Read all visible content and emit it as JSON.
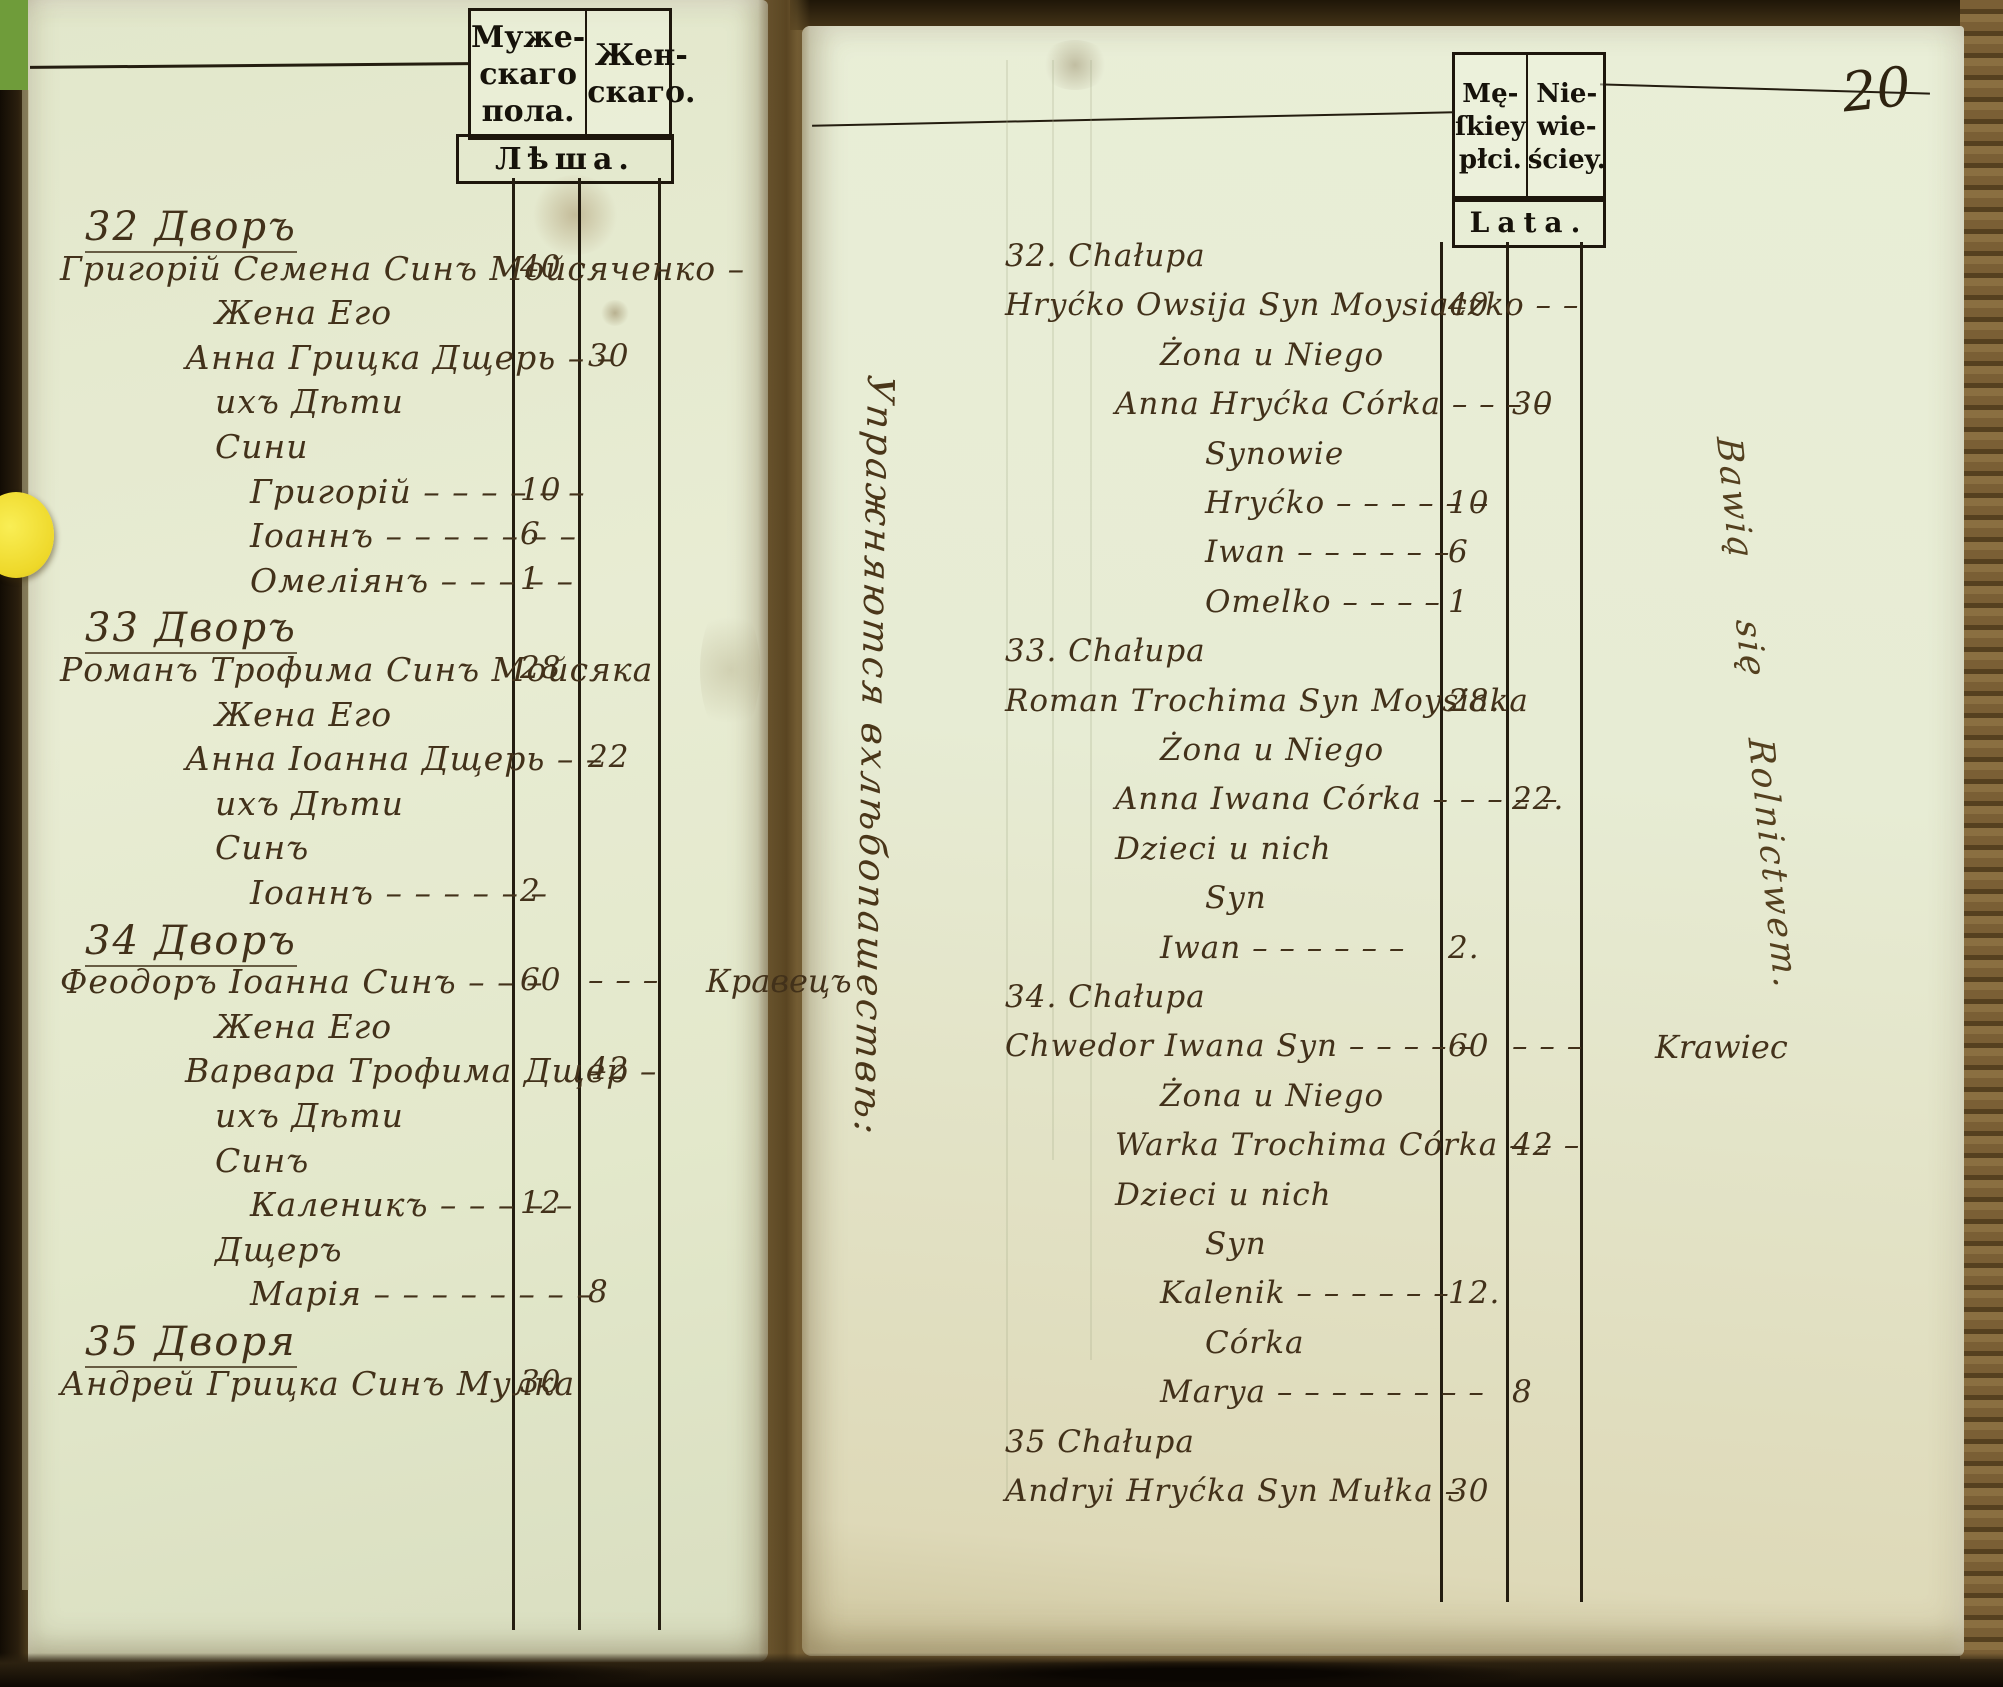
{
  "page_number": "20",
  "colors": {
    "paper_left": "#e5eace",
    "paper_right": "#e8edd5",
    "ink_hand": "#42311a",
    "ink_print": "#16120a",
    "sticker_yellow": "#eed829"
  },
  "left_page": {
    "header": {
      "col1": [
        "Муже-",
        "скаго",
        "пола."
      ],
      "col2": [
        "Жен-",
        "скаго."
      ],
      "years": "Лѣша."
    },
    "rows": [
      {
        "t": "32 Дворъ",
        "lvl": 1,
        "u": 1
      },
      {
        "t": "Григорій Семена Синъ Мойсяченко –",
        "lvl": 0,
        "m": "40"
      },
      {
        "t": "Жена Его",
        "lvl": 3
      },
      {
        "t": "Анна Грицка Дщерь – –",
        "lvl": 2,
        "f": "30"
      },
      {
        "t": "ихъ Дѣти",
        "lvl": 3
      },
      {
        "t": "Сини",
        "lvl": 3
      },
      {
        "t": "Григорій – – – – – –",
        "lvl": 4,
        "m": "10"
      },
      {
        "t": "Іоаннъ – – – – – – –",
        "lvl": 4,
        "m": "6"
      },
      {
        "t": "Омеліянъ – – – – –",
        "lvl": 4,
        "m": "1"
      },
      {
        "t": "33 Дворъ",
        "lvl": 1,
        "u": 1
      },
      {
        "t": "Романъ Трофима Синъ Мойсяка",
        "lvl": 0,
        "m": "28"
      },
      {
        "t": "Жена Его",
        "lvl": 3
      },
      {
        "t": "Анна Іоанна Дщерь – –",
        "lvl": 2,
        "f": "22"
      },
      {
        "t": "ихъ Дѣти",
        "lvl": 3
      },
      {
        "t": "Синъ",
        "lvl": 3
      },
      {
        "t": "Іоаннъ – – – – – –",
        "lvl": 4,
        "m": "2"
      },
      {
        "t": "34 Дворъ",
        "lvl": 1,
        "u": 1
      },
      {
        "t": "Феодоръ Іоанна Синъ – – –",
        "lvl": 0,
        "m": "60",
        "f": "– – –",
        "note": "Кравецъ"
      },
      {
        "t": "Жена Его",
        "lvl": 3
      },
      {
        "t": "Варвара Трофима Дщер –",
        "lvl": 2,
        "f": "42"
      },
      {
        "t": "ихъ Дѣти",
        "lvl": 3
      },
      {
        "t": "Синъ",
        "lvl": 3
      },
      {
        "t": "Каленикъ – – – – –",
        "lvl": 4,
        "m": "12"
      },
      {
        "t": "Дщеръ",
        "lvl": 3
      },
      {
        "t": "Марія – – – – – – – –",
        "lvl": 4,
        "f": "8"
      },
      {
        "t": "35 Дворя",
        "lvl": 1,
        "u": 1
      },
      {
        "t": "Андрей Грицка Синъ Мулка",
        "lvl": 0,
        "m": "30"
      }
    ]
  },
  "right_page": {
    "header": {
      "col1": [
        "Mę-",
        "ſkiey",
        "płci."
      ],
      "col2": [
        "Nie-",
        "wie-",
        "ściey."
      ],
      "years": "Lata."
    },
    "rows": [
      {
        "t": "32. Chałupa",
        "lvl": 1
      },
      {
        "t": "Hryćko Owsija Syn Moysiaczko – –",
        "lvl": 0,
        "m": "40"
      },
      {
        "t": "Żona u Niego",
        "lvl": 3
      },
      {
        "t": "Anna Hryćka Córka – – – –",
        "lvl": 2,
        "f": "30"
      },
      {
        "t": "Synowie",
        "lvl": 4
      },
      {
        "t": "Hryćko – – – – – –",
        "lvl": 4,
        "m": "10"
      },
      {
        "t": "Iwan – – – – – –",
        "lvl": 4,
        "m": "6"
      },
      {
        "t": "Omelko – – – –",
        "lvl": 4,
        "m": "1"
      },
      {
        "t": "33. Chałupa",
        "lvl": 1
      },
      {
        "t": "Roman Trochima Syn Moysiaka",
        "lvl": 0,
        "m": "28."
      },
      {
        "t": "Żona u Niego",
        "lvl": 3
      },
      {
        "t": "Anna Iwana Córka – – – – –",
        "lvl": 2,
        "f": "22."
      },
      {
        "t": "Dzieci u nich",
        "lvl": 2
      },
      {
        "t": "Syn",
        "lvl": 4
      },
      {
        "t": "Iwan – – – – – –",
        "lvl": 3,
        "m": "2."
      },
      {
        "t": "34. Chałupa",
        "lvl": 1
      },
      {
        "t": "Chwedor Iwana Syn – – – – –",
        "lvl": 0,
        "m": "60",
        "f": "– – –",
        "note": "Krawiec"
      },
      {
        "t": "Żona u Niego",
        "lvl": 3
      },
      {
        "t": "Warka Trochima Córka – – –",
        "lvl": 2,
        "f": "42"
      },
      {
        "t": "Dzieci u nich",
        "lvl": 2
      },
      {
        "t": "Syn",
        "lvl": 4
      },
      {
        "t": "Kalenik – – – – – –",
        "lvl": 3,
        "m": "12."
      },
      {
        "t": "Córka",
        "lvl": 4
      },
      {
        "t": "Marya – – – – – – – –",
        "lvl": 3,
        "f": "8"
      },
      {
        "t": "35 Chałupa",
        "lvl": 1
      },
      {
        "t": "Andryi Hryćka Syn Mułka –",
        "lvl": 0,
        "m": "30"
      }
    ]
  },
  "margin_notes": {
    "center": "Упражняются вхлѣбопашествѣ:",
    "right": "Bawią się Rolnictwem."
  }
}
